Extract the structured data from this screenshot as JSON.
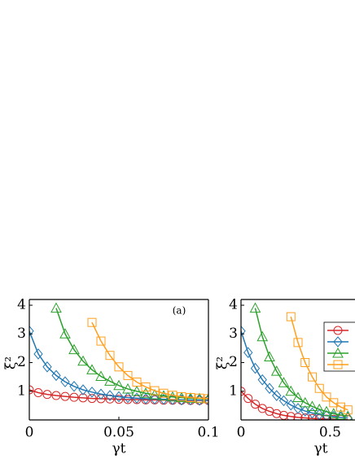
{
  "chart_data": [
    {
      "type": "line",
      "annotation": "(a)",
      "x_label": "γt",
      "y_label": "ξ²",
      "xlim": [
        0,
        0.1
      ],
      "ylim": [
        0,
        4.2
      ],
      "xticks": [
        0,
        0.05,
        0.1
      ],
      "yticks": [
        1,
        2,
        3,
        4
      ],
      "series": [
        {
          "color": "#d62728",
          "marker": "circle",
          "x": [
            0,
            0.005,
            0.01,
            0.015,
            0.02,
            0.025,
            0.03,
            0.035,
            0.04,
            0.045,
            0.05,
            0.055,
            0.06,
            0.065,
            0.07,
            0.075,
            0.08,
            0.085,
            0.09,
            0.095,
            0.1
          ],
          "values": [
            1.05,
            0.95,
            0.89,
            0.85,
            0.82,
            0.79,
            0.77,
            0.75,
            0.74,
            0.73,
            0.72,
            0.71,
            0.71,
            0.7,
            0.7,
            0.69,
            0.69,
            0.69,
            0.68,
            0.68,
            0.68
          ]
        },
        {
          "color": "#1f77b4",
          "marker": "diamond",
          "x": [
            0,
            0.005,
            0.01,
            0.015,
            0.02,
            0.025,
            0.03,
            0.035,
            0.04,
            0.045,
            0.05,
            0.055,
            0.06,
            0.065,
            0.07,
            0.075,
            0.08,
            0.085,
            0.09,
            0.095,
            0.1
          ],
          "values": [
            3.1,
            2.3,
            1.85,
            1.55,
            1.33,
            1.17,
            1.05,
            0.97,
            0.9,
            0.85,
            0.81,
            0.78,
            0.76,
            0.74,
            0.73,
            0.72,
            0.71,
            0.7,
            0.7,
            0.69,
            0.69
          ]
        },
        {
          "color": "#2ca02c",
          "marker": "triangle",
          "x": [
            0.015,
            0.02,
            0.025,
            0.03,
            0.035,
            0.04,
            0.045,
            0.05,
            0.055,
            0.06,
            0.065,
            0.07,
            0.075,
            0.08,
            0.085,
            0.09,
            0.095,
            0.1
          ],
          "values": [
            3.9,
            3.0,
            2.45,
            2.05,
            1.75,
            1.52,
            1.35,
            1.2,
            1.08,
            1.0,
            0.93,
            0.88,
            0.84,
            0.8,
            0.78,
            0.76,
            0.75,
            0.74
          ]
        },
        {
          "color": "#ff9f1c",
          "marker": "square",
          "x": [
            0.035,
            0.04,
            0.045,
            0.05,
            0.055,
            0.06,
            0.065,
            0.07,
            0.075,
            0.08,
            0.085,
            0.09,
            0.095,
            0.1
          ],
          "values": [
            3.4,
            2.75,
            2.25,
            1.85,
            1.55,
            1.32,
            1.15,
            1.02,
            0.93,
            0.86,
            0.81,
            0.78,
            0.76,
            0.74
          ]
        }
      ]
    },
    {
      "type": "line",
      "x_label": "γt",
      "y_label": "ξ²",
      "legend": "upper right",
      "xlim": [
        0,
        0.64
      ],
      "ylim": [
        0,
        4.2
      ],
      "xticks": [
        0,
        0.5
      ],
      "yticks": [
        1,
        2,
        3,
        4
      ],
      "series": [
        {
          "color": "#d62728",
          "marker": "circle",
          "x": [
            0,
            0.04,
            0.08,
            0.12,
            0.16,
            0.2,
            0.24,
            0.28,
            0.32,
            0.36,
            0.4,
            0.44,
            0.48,
            0.52,
            0.56,
            0.6
          ],
          "values": [
            1.0,
            0.75,
            0.55,
            0.4,
            0.3,
            0.22,
            0.16,
            0.12,
            0.09,
            0.07,
            0.05,
            0.04,
            0.03,
            0.02,
            0.02,
            0.01
          ]
        },
        {
          "color": "#1f77b4",
          "marker": "diamond",
          "x": [
            0,
            0.04,
            0.08,
            0.12,
            0.16,
            0.2,
            0.24,
            0.28,
            0.32,
            0.36,
            0.4,
            0.44,
            0.48,
            0.52,
            0.56,
            0.6
          ],
          "values": [
            3.1,
            2.35,
            1.8,
            1.4,
            1.1,
            0.85,
            0.67,
            0.52,
            0.4,
            0.31,
            0.24,
            0.19,
            0.15,
            0.12,
            0.09,
            0.07
          ]
        },
        {
          "color": "#2ca02c",
          "marker": "triangle",
          "x": [
            0.08,
            0.12,
            0.16,
            0.2,
            0.24,
            0.28,
            0.32,
            0.36,
            0.4,
            0.44,
            0.48,
            0.52,
            0.56,
            0.6
          ],
          "values": [
            3.9,
            2.9,
            2.2,
            1.7,
            1.3,
            1.0,
            0.78,
            0.6,
            0.47,
            0.37,
            0.29,
            0.22,
            0.17,
            0.13
          ]
        },
        {
          "color": "#ff9f1c",
          "marker": "square",
          "x": [
            0.28,
            0.32,
            0.36,
            0.4,
            0.44,
            0.48,
            0.52,
            0.56,
            0.6
          ],
          "values": [
            3.6,
            2.7,
            2.0,
            1.5,
            1.1,
            0.8,
            0.6,
            0.45,
            0.35
          ]
        }
      ]
    }
  ]
}
